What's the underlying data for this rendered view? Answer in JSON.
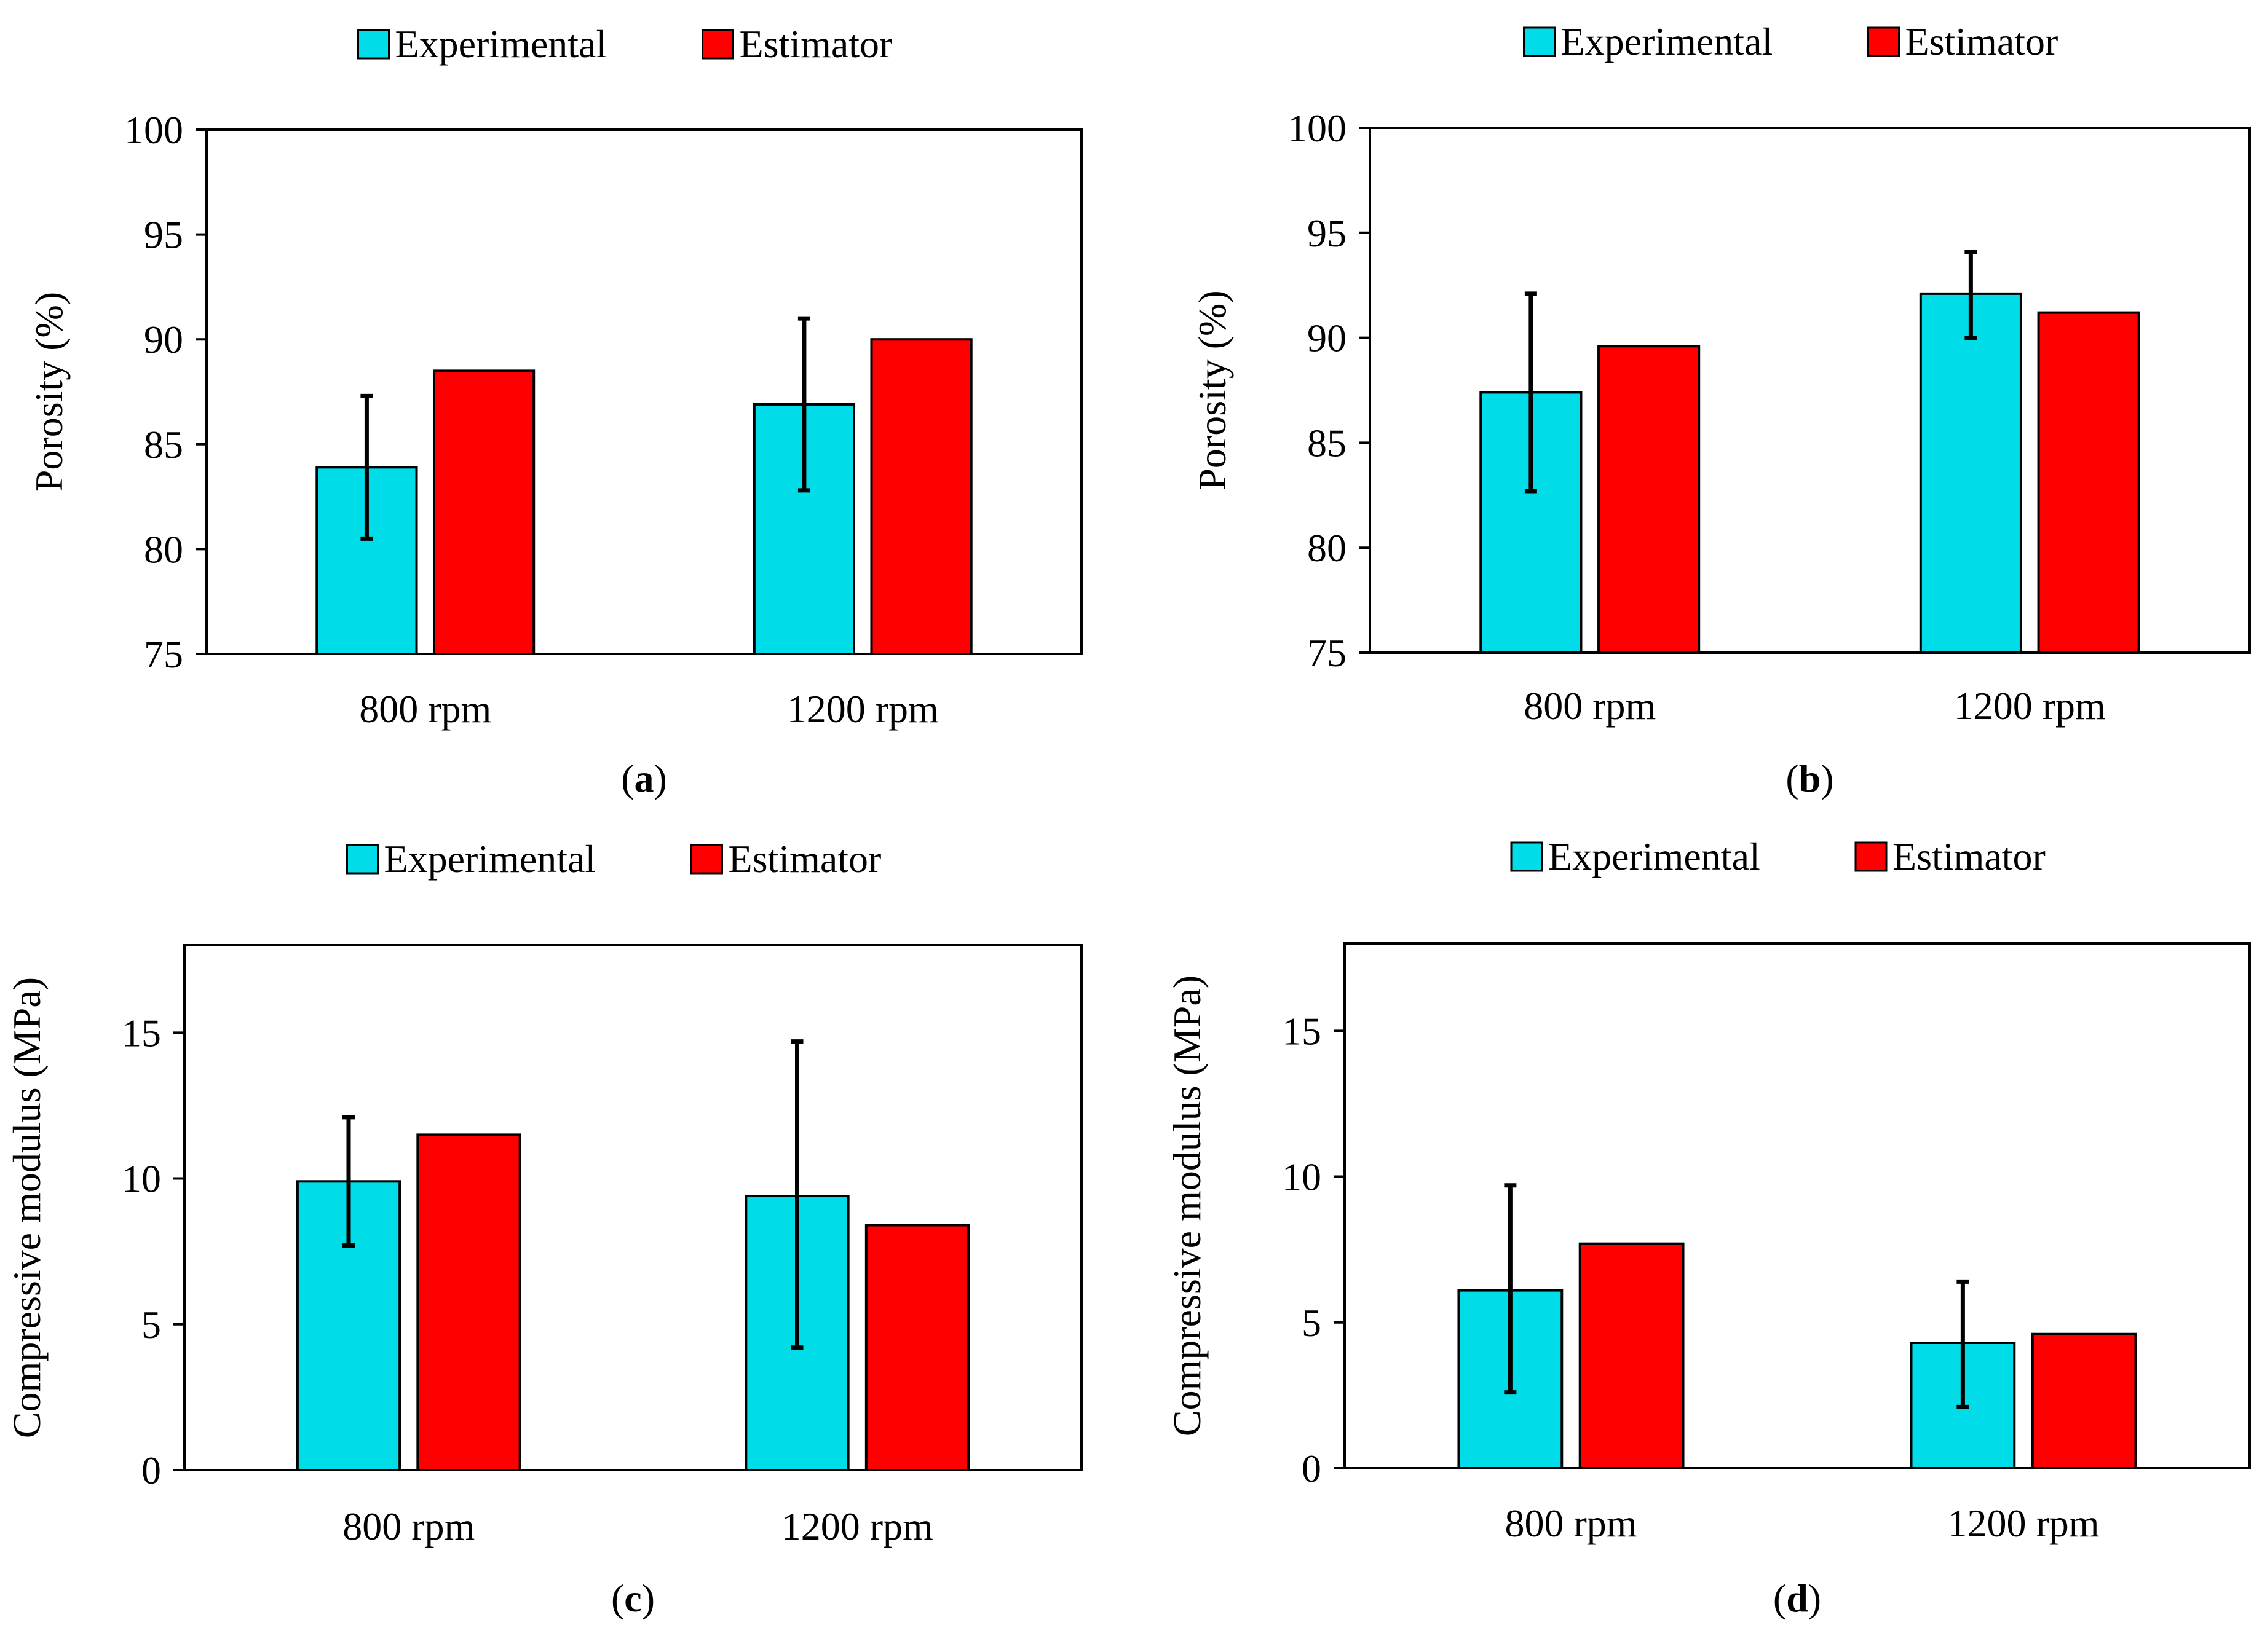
{
  "colors": {
    "experimental": "#00DDE8",
    "estimator": "#FF0000",
    "axis": "#000000",
    "background": "#FFFFFF"
  },
  "chart_data": [
    {
      "panel": "(a)",
      "panel_letter": "a",
      "type": "bar",
      "title": "",
      "xlabel": "",
      "ylabel": "Porosity (%)",
      "ylim": [
        75,
        100
      ],
      "yticks": [
        75,
        80,
        85,
        90,
        95,
        100
      ],
      "grid": false,
      "legend_position": "top",
      "categories": [
        "800 rpm",
        "1200 rpm"
      ],
      "series": [
        {
          "name": "Experimental",
          "color_key": "experimental",
          "values": [
            83.9,
            86.9
          ],
          "error_low": [
            80.5,
            82.8
          ],
          "error_high": [
            87.3,
            91.0
          ]
        },
        {
          "name": "Estimator",
          "color_key": "estimator",
          "values": [
            88.5,
            90.0
          ]
        }
      ]
    },
    {
      "panel": "(b)",
      "panel_letter": "b",
      "type": "bar",
      "title": "",
      "xlabel": "",
      "ylabel": "Porosity (%)",
      "ylim": [
        75,
        100
      ],
      "yticks": [
        75,
        80,
        85,
        90,
        95,
        100
      ],
      "grid": false,
      "legend_position": "top",
      "categories": [
        "800 rpm",
        "1200 rpm"
      ],
      "series": [
        {
          "name": "Experimental",
          "color_key": "experimental",
          "values": [
            87.4,
            92.1
          ],
          "error_low": [
            82.7,
            90.0
          ],
          "error_high": [
            92.1,
            94.1
          ]
        },
        {
          "name": "Estimator",
          "color_key": "estimator",
          "values": [
            89.6,
            91.2
          ]
        }
      ]
    },
    {
      "panel": "(c)",
      "panel_letter": "c",
      "type": "bar",
      "title": "",
      "xlabel": "",
      "ylabel": "Compressive modulus (MPa)",
      "ylim": [
        0,
        18
      ],
      "yticks": [
        0,
        5,
        10,
        15
      ],
      "grid": false,
      "legend_position": "top",
      "categories": [
        "800 rpm",
        "1200 rpm"
      ],
      "series": [
        {
          "name": "Experimental",
          "color_key": "experimental",
          "values": [
            9.9,
            9.4
          ],
          "error_low": [
            7.7,
            4.2
          ],
          "error_high": [
            12.1,
            14.7
          ]
        },
        {
          "name": "Estimator",
          "color_key": "estimator",
          "values": [
            11.5,
            8.4
          ]
        }
      ]
    },
    {
      "panel": "(d)",
      "panel_letter": "d",
      "type": "bar",
      "title": "",
      "xlabel": "",
      "ylabel": "Compressive modulus (MPa)",
      "ylim": [
        0,
        18
      ],
      "yticks": [
        0,
        5,
        10,
        15
      ],
      "grid": false,
      "legend_position": "top",
      "categories": [
        "800 rpm",
        "1200 rpm"
      ],
      "series": [
        {
          "name": "Experimental",
          "color_key": "experimental",
          "values": [
            6.1,
            4.3
          ],
          "error_low": [
            2.6,
            2.1
          ],
          "error_high": [
            9.7,
            6.4
          ]
        },
        {
          "name": "Estimator",
          "color_key": "estimator",
          "values": [
            7.7,
            4.6
          ]
        }
      ]
    }
  ]
}
